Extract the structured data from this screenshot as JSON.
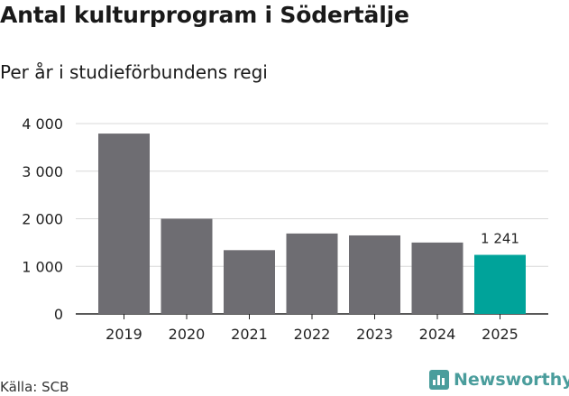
{
  "title": "Antal kulturprogram i Södertälje",
  "subtitle": "Per år i studieförbundens regi",
  "source": "Källa: SCB",
  "brand": {
    "name": "Newsworthy",
    "icon": "newsworthy-logo-icon",
    "color": "#4a9d9c"
  },
  "chart_data": {
    "type": "bar",
    "categories": [
      "2019",
      "2020",
      "2021",
      "2022",
      "2023",
      "2024",
      "2025"
    ],
    "values": [
      3790,
      2000,
      1340,
      1690,
      1650,
      1500,
      1241
    ],
    "ylim": [
      0,
      4000
    ],
    "yticks": [
      0,
      1000,
      2000,
      3000,
      4000
    ],
    "ytick_labels": [
      "0",
      "1 000",
      "2 000",
      "3 000",
      "4 000"
    ],
    "grid": true,
    "legend": "none",
    "bar_color": "#6e6d72",
    "highlight_color": "#00a39a",
    "highlight_index": 6,
    "data_labels": [
      {
        "index": 6,
        "text": "1 241"
      }
    ]
  }
}
